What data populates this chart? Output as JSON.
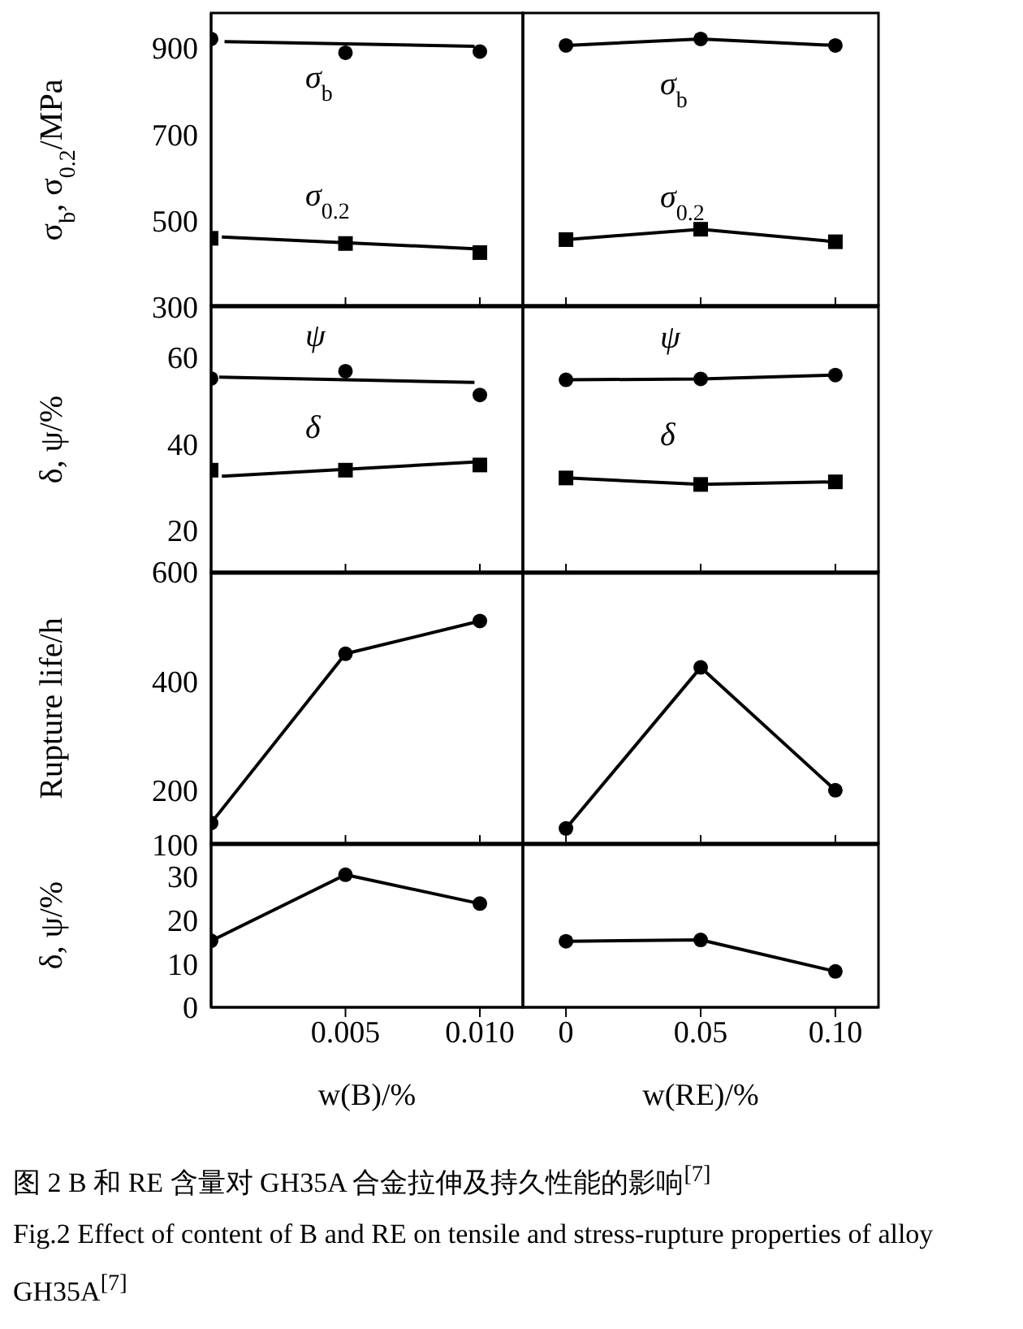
{
  "chart_data": [
    {
      "type": "line",
      "ylabel": "σ$_{b}$, σ$_{0.2}$/MPa",
      "xlim": [
        0,
        0.0116
      ],
      "xticks": [
        0.005,
        0.01
      ],
      "ylim": [
        300,
        980
      ],
      "yticks": [
        300,
        500,
        700,
        900
      ],
      "tick_labels": "y",
      "x": [
        0,
        0.005,
        0.01
      ],
      "series": [
        {
          "type": "scatter",
          "name": "σ$_{b}$",
          "color": "#000000",
          "marker": "circle",
          "values": [
            920,
            888,
            891
          ]
        },
        {
          "type": "line",
          "x": [
            0.0005,
            0.0098
          ],
          "color": "#000000",
          "values": [
            914,
            903
          ]
        },
        {
          "type": "scatter",
          "name": "σ$_{0.2}$",
          "color": "#000000",
          "marker": "square",
          "values": [
            459,
            447,
            426
          ]
        },
        {
          "type": "line",
          "x": [
            0.0004,
            0.0098
          ],
          "color": "#000000",
          "values": [
            462,
            435
          ]
        }
      ]
    },
    {
      "type": "line",
      "xlim": [
        -0.016,
        0.116
      ],
      "xticks": [
        0,
        0.05,
        0.1
      ],
      "ylim": [
        300,
        980
      ],
      "yticks": [
        300,
        500,
        700,
        900
      ],
      "tick_labels": false,
      "x": [
        0,
        0.05,
        0.1
      ],
      "series": [
        {
          "name": "σ$_{b}$",
          "color": "#000000",
          "marker": "circle",
          "values": [
            905,
            920,
            905
          ]
        },
        {
          "name": "σ$_{0.2}$",
          "color": "#000000",
          "marker": "square",
          "values": [
            456,
            480,
            451
          ]
        }
      ]
    },
    {
      "type": "line",
      "ylabel": "δ, ψ/%",
      "xlim": [
        0,
        0.0116
      ],
      "xticks": [
        0.005,
        0.01
      ],
      "ylim": [
        10,
        72
      ],
      "yticks": [
        20,
        40,
        60
      ],
      "tick_labels": "y",
      "x": [
        0,
        0.005,
        0.01
      ],
      "series": [
        {
          "type": "scatter",
          "name": "ψ",
          "color": "#000000",
          "marker": "circle",
          "values": [
            55.1,
            56.8,
            51.3
          ]
        },
        {
          "type": "line",
          "x": [
            0.0003,
            0.0098
          ],
          "color": "#000000",
          "values": [
            55.4,
            54.2
          ]
        },
        {
          "type": "scatter",
          "name": "δ",
          "color": "#000000",
          "marker": "square",
          "values": [
            33.9,
            33.9,
            35.1
          ]
        },
        {
          "type": "line",
          "x": [
            0.0004,
            0.0098
          ],
          "color": "#000000",
          "values": [
            32.5,
            35.8
          ]
        }
      ]
    },
    {
      "type": "line",
      "xlim": [
        -0.016,
        0.116
      ],
      "xticks": [
        0,
        0.05,
        0.1
      ],
      "ylim": [
        10,
        72
      ],
      "yticks": [
        20,
        40,
        60
      ],
      "tick_labels": false,
      "x": [
        0,
        0.05,
        0.1
      ],
      "series": [
        {
          "name": "ψ",
          "color": "#000000",
          "marker": "circle",
          "values": [
            54.8,
            55,
            55.9
          ]
        },
        {
          "name": "δ",
          "color": "#000000",
          "marker": "square",
          "values": [
            32.1,
            30.6,
            31.2
          ]
        }
      ]
    },
    {
      "type": "line",
      "ylabel": "Rupture life/h",
      "xlim": [
        0,
        0.0116
      ],
      "xticks": [
        0.005,
        0.01
      ],
      "ylim": [
        100,
        600
      ],
      "yticks": [
        100,
        200,
        400,
        600
      ],
      "tick_labels": "y",
      "x": [
        0,
        0.005,
        0.01
      ],
      "series": [
        {
          "color": "#000000",
          "marker": "circle",
          "values": [
            140,
            450,
            510
          ]
        }
      ]
    },
    {
      "type": "line",
      "xlim": [
        -0.016,
        0.116
      ],
      "xticks": [
        0,
        0.05,
        0.1
      ],
      "ylim": [
        100,
        600
      ],
      "yticks": [
        100,
        200,
        400,
        600
      ],
      "tick_labels": false,
      "x": [
        0,
        0.05,
        0.1
      ],
      "series": [
        {
          "color": "#000000",
          "marker": "circle",
          "values": [
            130,
            425,
            200
          ]
        }
      ]
    },
    {
      "type": "line",
      "ylabel": "δ, ψ/%",
      "xlabel": "w(B)/%",
      "xlim": [
        0,
        0.0116
      ],
      "xticks": [
        0.005,
        {
          "value": 0.01,
          "label": "0.010"
        }
      ],
      "ylim": [
        0,
        37.5
      ],
      "yticks": [
        0,
        10,
        20,
        30
      ],
      "x": [
        0,
        0.005,
        0.01
      ],
      "series": [
        {
          "color": "#000000",
          "marker": "circle",
          "values": [
            15.2,
            30.3,
            23.7
          ]
        }
      ]
    },
    {
      "type": "line",
      "xlabel": "w(RE)/%",
      "xlim": [
        -0.016,
        0.116
      ],
      "xticks": [
        0,
        0.05,
        {
          "value": 0.1,
          "label": "0.10"
        }
      ],
      "ylim": [
        0,
        37.5
      ],
      "yticks": [
        0,
        10,
        20,
        30
      ],
      "tick_labels": "x",
      "x": [
        0,
        0.05,
        0.1
      ],
      "series": [
        {
          "color": "#000000",
          "marker": "circle",
          "values": [
            15.1,
            15.4,
            8.2
          ]
        }
      ],
      "annotations": [
        "图 2  B 和 RE 含量对 GH35A 合金拉伸及持久性能的影响$^{[7]}$",
        "Fig.2  Effect of content of B and RE on tensile and stress-rupture properties of alloy GH35A$^{[7]}$"
      ]
    }
  ]
}
